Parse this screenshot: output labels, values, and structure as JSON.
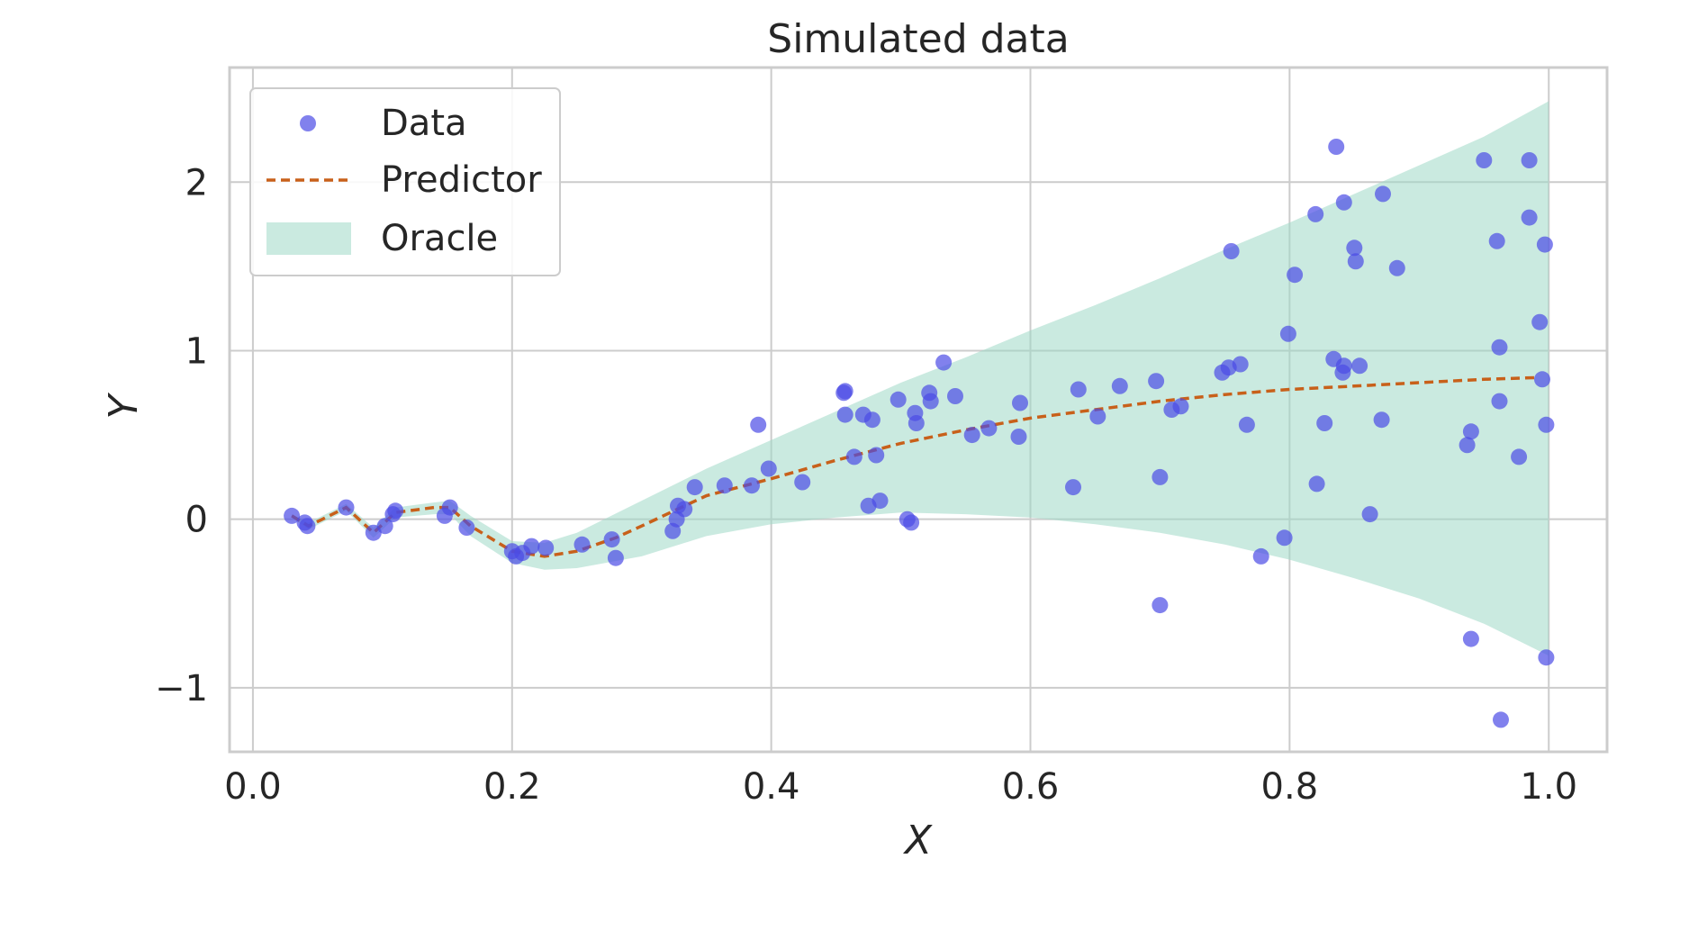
{
  "chart_data": {
    "type": "scatter",
    "title": "Simulated data",
    "xlabel": "X",
    "ylabel": "Y",
    "xlim": [
      -0.018,
      1.045
    ],
    "ylim": [
      -1.38,
      2.68
    ],
    "xticks": [
      0.0,
      0.2,
      0.4,
      0.6,
      0.8,
      1.0
    ],
    "xtick_labels": [
      "0.0",
      "0.2",
      "0.4",
      "0.6",
      "0.8",
      "1.0"
    ],
    "yticks": [
      -1,
      0,
      1,
      2
    ],
    "ytick_labels": [
      "−1",
      "0",
      "1",
      "2"
    ],
    "grid": true,
    "legend_position": "top-left",
    "colors": {
      "data": "#4b4be6",
      "predictor": "#c8601a",
      "oracle": "#9ed9c6",
      "grid": "#cccccc",
      "frame": "#cccccc"
    },
    "legend": [
      {
        "label": "Data",
        "kind": "marker"
      },
      {
        "label": "Predictor",
        "kind": "dashed-line"
      },
      {
        "label": "Oracle",
        "kind": "band"
      }
    ],
    "series": [
      {
        "name": "Data",
        "type": "scatter",
        "points": [
          [
            0.03,
            0.02
          ],
          [
            0.04,
            -0.02
          ],
          [
            0.042,
            -0.04
          ],
          [
            0.072,
            0.07
          ],
          [
            0.093,
            -0.08
          ],
          [
            0.102,
            -0.04
          ],
          [
            0.108,
            0.03
          ],
          [
            0.11,
            0.05
          ],
          [
            0.148,
            0.02
          ],
          [
            0.152,
            0.07
          ],
          [
            0.165,
            -0.05
          ],
          [
            0.2,
            -0.19
          ],
          [
            0.203,
            -0.22
          ],
          [
            0.208,
            -0.2
          ],
          [
            0.215,
            -0.16
          ],
          [
            0.226,
            -0.17
          ],
          [
            0.254,
            -0.15
          ],
          [
            0.277,
            -0.12
          ],
          [
            0.28,
            -0.23
          ],
          [
            0.324,
            -0.07
          ],
          [
            0.327,
            0.0
          ],
          [
            0.328,
            0.08
          ],
          [
            0.333,
            0.06
          ],
          [
            0.341,
            0.19
          ],
          [
            0.364,
            0.2
          ],
          [
            0.385,
            0.2
          ],
          [
            0.39,
            0.56
          ],
          [
            0.398,
            0.3
          ],
          [
            0.424,
            0.22
          ],
          [
            0.456,
            0.75
          ],
          [
            0.457,
            0.76
          ],
          [
            0.457,
            0.62
          ],
          [
            0.464,
            0.37
          ],
          [
            0.471,
            0.62
          ],
          [
            0.475,
            0.08
          ],
          [
            0.478,
            0.59
          ],
          [
            0.481,
            0.38
          ],
          [
            0.484,
            0.11
          ],
          [
            0.498,
            0.71
          ],
          [
            0.505,
            0.0
          ],
          [
            0.508,
            -0.02
          ],
          [
            0.511,
            0.63
          ],
          [
            0.512,
            0.57
          ],
          [
            0.522,
            0.75
          ],
          [
            0.523,
            0.7
          ],
          [
            0.533,
            0.93
          ],
          [
            0.542,
            0.73
          ],
          [
            0.555,
            0.5
          ],
          [
            0.568,
            0.54
          ],
          [
            0.591,
            0.49
          ],
          [
            0.592,
            0.69
          ],
          [
            0.633,
            0.19
          ],
          [
            0.637,
            0.77
          ],
          [
            0.652,
            0.61
          ],
          [
            0.669,
            0.79
          ],
          [
            0.697,
            0.82
          ],
          [
            0.7,
            0.25
          ],
          [
            0.7,
            -0.51
          ],
          [
            0.709,
            0.65
          ],
          [
            0.716,
            0.67
          ],
          [
            0.748,
            0.87
          ],
          [
            0.753,
            0.9
          ],
          [
            0.755,
            1.59
          ],
          [
            0.762,
            0.92
          ],
          [
            0.767,
            0.56
          ],
          [
            0.778,
            -0.22
          ],
          [
            0.796,
            -0.11
          ],
          [
            0.799,
            1.1
          ],
          [
            0.804,
            1.45
          ],
          [
            0.821,
            0.21
          ],
          [
            0.82,
            1.81
          ],
          [
            0.827,
            0.57
          ],
          [
            0.834,
            0.95
          ],
          [
            0.836,
            2.21
          ],
          [
            0.841,
            0.87
          ],
          [
            0.842,
            0.91
          ],
          [
            0.842,
            1.88
          ],
          [
            0.85,
            1.61
          ],
          [
            0.851,
            1.53
          ],
          [
            0.854,
            0.91
          ],
          [
            0.862,
            0.03
          ],
          [
            0.871,
            0.59
          ],
          [
            0.872,
            1.93
          ],
          [
            0.883,
            1.49
          ],
          [
            0.937,
            0.44
          ],
          [
            0.94,
            0.52
          ],
          [
            0.94,
            -0.71
          ],
          [
            0.95,
            2.13
          ],
          [
            0.96,
            1.65
          ],
          [
            0.962,
            1.02
          ],
          [
            0.962,
            0.7
          ],
          [
            0.963,
            -1.19
          ],
          [
            0.977,
            0.37
          ],
          [
            0.985,
            2.13
          ],
          [
            0.985,
            1.79
          ],
          [
            0.993,
            1.17
          ],
          [
            0.995,
            0.83
          ],
          [
            0.997,
            1.63
          ],
          [
            0.998,
            0.56
          ],
          [
            0.998,
            -0.82
          ]
        ]
      },
      {
        "name": "Predictor",
        "type": "line",
        "style": "dashed",
        "points": [
          [
            0.03,
            0.02
          ],
          [
            0.043,
            -0.04
          ],
          [
            0.072,
            0.07
          ],
          [
            0.093,
            -0.08
          ],
          [
            0.11,
            0.04
          ],
          [
            0.14,
            0.07
          ],
          [
            0.152,
            0.07
          ],
          [
            0.168,
            -0.04
          ],
          [
            0.2,
            -0.19
          ],
          [
            0.225,
            -0.22
          ],
          [
            0.25,
            -0.19
          ],
          [
            0.28,
            -0.11
          ],
          [
            0.3,
            -0.04
          ],
          [
            0.325,
            0.05
          ],
          [
            0.35,
            0.14
          ],
          [
            0.4,
            0.24
          ],
          [
            0.45,
            0.35
          ],
          [
            0.5,
            0.45
          ],
          [
            0.55,
            0.53
          ],
          [
            0.6,
            0.6
          ],
          [
            0.65,
            0.65
          ],
          [
            0.7,
            0.7
          ],
          [
            0.75,
            0.74
          ],
          [
            0.8,
            0.77
          ],
          [
            0.85,
            0.79
          ],
          [
            0.9,
            0.81
          ],
          [
            0.95,
            0.83
          ],
          [
            0.99,
            0.84
          ]
        ]
      },
      {
        "name": "Oracle",
        "type": "area",
        "x": [
          0.03,
          0.043,
          0.072,
          0.093,
          0.11,
          0.14,
          0.152,
          0.168,
          0.2,
          0.225,
          0.25,
          0.3,
          0.35,
          0.4,
          0.45,
          0.5,
          0.55,
          0.6,
          0.65,
          0.7,
          0.75,
          0.8,
          0.85,
          0.9,
          0.95,
          1.0
        ],
        "upper": [
          0.03,
          -0.02,
          0.09,
          -0.05,
          0.07,
          0.1,
          0.11,
          0.02,
          -0.13,
          -0.14,
          -0.08,
          0.11,
          0.3,
          0.47,
          0.64,
          0.81,
          0.96,
          1.12,
          1.27,
          1.43,
          1.6,
          1.76,
          1.93,
          2.1,
          2.27,
          2.48
        ],
        "lower": [
          0.01,
          -0.06,
          0.05,
          -0.11,
          0.01,
          0.03,
          0.03,
          -0.1,
          -0.26,
          -0.3,
          -0.29,
          -0.22,
          -0.1,
          -0.03,
          0.01,
          0.04,
          0.03,
          0.01,
          -0.03,
          -0.08,
          -0.15,
          -0.24,
          -0.35,
          -0.47,
          -0.62,
          -0.81
        ]
      }
    ]
  }
}
